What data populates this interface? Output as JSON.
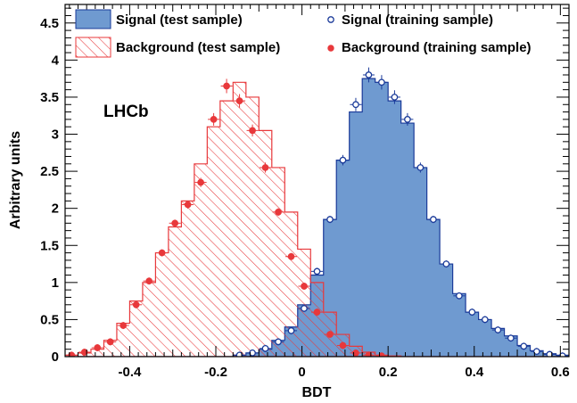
{
  "chart_data": {
    "type": "histogram",
    "xlabel": "BDT",
    "ylabel": "Arbitrary units",
    "annotation": "LHCb",
    "xlim": [
      -0.55,
      0.62
    ],
    "ylim": [
      0,
      4.75
    ],
    "bin_width": 0.03,
    "bin_edges": [
      -0.55,
      -0.52,
      -0.49,
      -0.46,
      -0.43,
      -0.4,
      -0.37,
      -0.34,
      -0.31,
      -0.28,
      -0.25,
      -0.22,
      -0.19,
      -0.16,
      -0.13,
      -0.1,
      -0.07,
      -0.04,
      -0.01,
      0.02,
      0.05,
      0.08,
      0.11,
      0.14,
      0.17,
      0.2,
      0.23,
      0.26,
      0.29,
      0.32,
      0.35,
      0.38,
      0.41,
      0.44,
      0.47,
      0.5,
      0.53,
      0.56,
      0.59,
      0.62
    ],
    "xticks": [
      -0.4,
      -0.2,
      0,
      0.2,
      0.4,
      0.6
    ],
    "xtick_labels": [
      "-0.4",
      "-0.2",
      "0",
      "0.2",
      "0.4",
      "0.6"
    ],
    "yticks": [
      0,
      0.5,
      1,
      1.5,
      2,
      2.5,
      3,
      3.5,
      4,
      4.5
    ],
    "ytick_labels": [
      "0",
      "0.5",
      "1",
      "1.5",
      "2",
      "2.5",
      "3",
      "3.5",
      "4",
      "4.5"
    ],
    "legend_placement": "top",
    "legend": [
      {
        "label": "Signal (test sample)",
        "style": "filled"
      },
      {
        "label": "Signal (training sample)",
        "style": "open-marker"
      },
      {
        "label": "Background (test sample)",
        "style": "hatched"
      },
      {
        "label": "Background (training sample)",
        "style": "filled-marker"
      }
    ],
    "series": [
      {
        "name": "Signal (test sample)",
        "color": "#6f9ad0",
        "edge": "#1a3a99",
        "values": [
          0,
          0,
          0,
          0,
          0,
          0,
          0,
          0,
          0,
          0,
          0,
          0,
          0,
          0.02,
          0.05,
          0.1,
          0.22,
          0.4,
          0.7,
          1.1,
          1.85,
          2.65,
          3.3,
          3.75,
          3.7,
          3.45,
          3.15,
          2.55,
          1.85,
          1.25,
          0.85,
          0.6,
          0.5,
          0.38,
          0.28,
          0.15,
          0.08,
          0.04,
          0.02
        ]
      },
      {
        "name": "Signal (training sample)",
        "color": "#1a3a99",
        "values": [
          0,
          0,
          0,
          0,
          0,
          0,
          0,
          0,
          0,
          0,
          0,
          0,
          0,
          0.02,
          0.05,
          0.11,
          0.2,
          0.35,
          0.65,
          1.15,
          1.85,
          2.65,
          3.4,
          3.8,
          3.7,
          3.5,
          3.2,
          2.55,
          1.85,
          1.25,
          0.82,
          0.6,
          0.5,
          0.36,
          0.25,
          0.14,
          0.07,
          0.03,
          0.01
        ]
      },
      {
        "name": "Background (test sample)",
        "color": "#e8383b",
        "values": [
          0.02,
          0.05,
          0.1,
          0.22,
          0.45,
          0.75,
          1.0,
          1.4,
          1.75,
          2.1,
          2.6,
          3.1,
          3.45,
          3.7,
          3.5,
          3.05,
          2.55,
          1.95,
          1.45,
          1.0,
          0.6,
          0.3,
          0.14,
          0.06,
          0.02,
          0.01,
          0,
          0,
          0,
          0,
          0,
          0,
          0,
          0,
          0,
          0,
          0,
          0,
          0
        ]
      },
      {
        "name": "Background (training sample)",
        "color": "#e8383b",
        "values": [
          0.02,
          0.06,
          0.12,
          0.2,
          0.42,
          0.7,
          1.02,
          1.4,
          1.8,
          2.05,
          2.35,
          3.2,
          3.65,
          3.45,
          3.05,
          2.55,
          1.95,
          1.35,
          0.95,
          0.6,
          0.3,
          0.15,
          0.05,
          0.02,
          0.01,
          0,
          0,
          0,
          0,
          0,
          0,
          0,
          0,
          0,
          0,
          0,
          0,
          0,
          0
        ]
      }
    ]
  }
}
